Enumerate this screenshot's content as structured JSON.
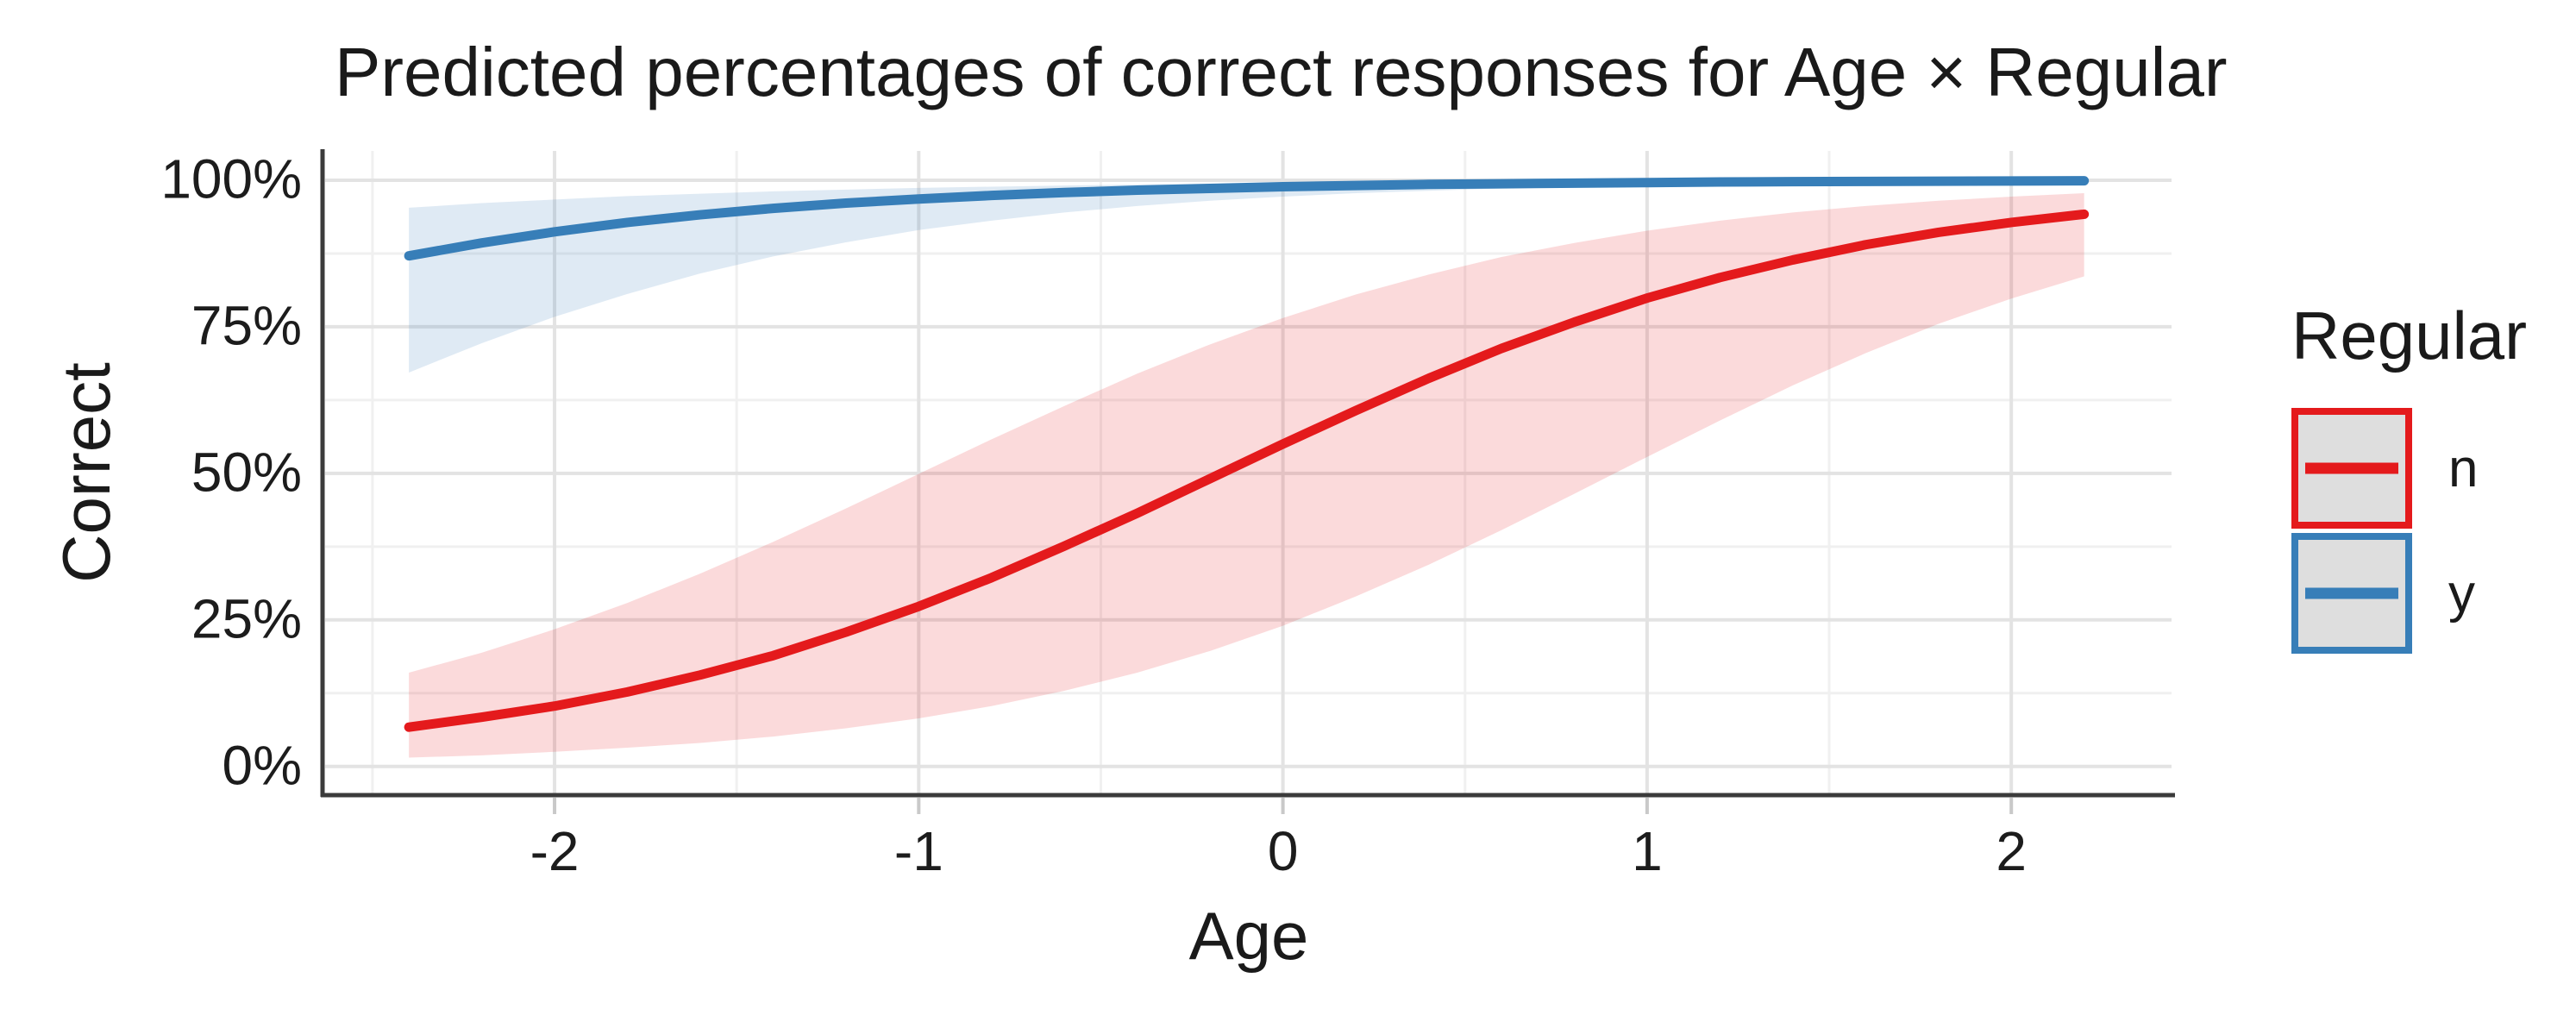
{
  "title": "Predicted percentages of correct responses for Age × Regular",
  "colors": {
    "background": "#ffffff",
    "grid_major": "#e3e3e3",
    "grid_minor": "#f0f0f0",
    "axis_line": "#3b3b3b",
    "tick_mark": "#c9c9c9",
    "text": "#1a1a1a",
    "legend_key_fill": "#dedede",
    "series_n": "#e41a1c",
    "series_y": "#377eb8",
    "ribbon_opacity": 0.16
  },
  "chart_data": {
    "type": "line",
    "title": "Predicted percentages of correct responses for Age × Regular",
    "xlabel": "Age",
    "ylabel": "Correct",
    "xlim": [
      -2.63,
      2.44
    ],
    "ylim": [
      -4.6,
      105.0
    ],
    "grid": true,
    "x_ticks": [
      -2,
      -1,
      0,
      1,
      2
    ],
    "x_tick_labels": [
      "-2",
      "-1",
      "0",
      "1",
      "2"
    ],
    "x_minor_ticks": [
      -2.5,
      -1.5,
      -0.5,
      0.5,
      1.5
    ],
    "y_ticks": [
      0,
      25,
      50,
      75,
      100
    ],
    "y_tick_labels": [
      "0%",
      "25%",
      "50%",
      "75%",
      "100%"
    ],
    "y_minor_ticks": [
      12.5,
      37.5,
      62.5,
      87.5
    ],
    "legend": {
      "title": "Regular",
      "position": "right",
      "entries": [
        {
          "label": "n",
          "color": "#e41a1c"
        },
        {
          "label": "y",
          "color": "#377eb8"
        }
      ]
    },
    "x": [
      -2.4,
      -2.2,
      -2.0,
      -1.8,
      -1.6,
      -1.4,
      -1.2,
      -1.0,
      -0.8,
      -0.6,
      -0.4,
      -0.2,
      0.0,
      0.2,
      0.4,
      0.6,
      0.8,
      1.0,
      1.2,
      1.4,
      1.6,
      1.8,
      2.0,
      2.2
    ],
    "series": [
      {
        "name": "n",
        "color": "#e41a1c",
        "values": [
          6.7,
          8.4,
          10.3,
          12.7,
          15.6,
          18.9,
          22.9,
          27.3,
          32.2,
          37.6,
          43.2,
          49.1,
          55.0,
          60.7,
          66.2,
          71.3,
          75.8,
          79.9,
          83.4,
          86.4,
          89.0,
          91.1,
          92.8,
          94.2
        ],
        "lower": [
          1.5,
          1.9,
          2.5,
          3.2,
          4.0,
          5.1,
          6.5,
          8.2,
          10.3,
          12.9,
          16.0,
          19.7,
          24.0,
          29.0,
          34.4,
          40.3,
          46.5,
          52.8,
          59.0,
          65.0,
          70.5,
          75.5,
          79.8,
          83.6
        ],
        "upper": [
          16.0,
          19.4,
          23.4,
          27.9,
          32.9,
          38.3,
          44.0,
          49.9,
          55.8,
          61.5,
          67.0,
          72.0,
          76.5,
          80.5,
          83.9,
          86.9,
          89.3,
          91.4,
          93.1,
          94.5,
          95.6,
          96.5,
          97.2,
          97.8
        ]
      },
      {
        "name": "y",
        "color": "#377eb8",
        "values": [
          87.1,
          89.3,
          91.2,
          92.8,
          94.1,
          95.2,
          96.1,
          96.8,
          97.4,
          97.9,
          98.3,
          98.6,
          98.9,
          99.1,
          99.3,
          99.4,
          99.5,
          99.6,
          99.7,
          99.76,
          99.8,
          99.84,
          99.87,
          99.9
        ],
        "lower": [
          67.2,
          72.2,
          76.7,
          80.6,
          84.1,
          87.0,
          89.4,
          91.5,
          93.1,
          94.5,
          95.6,
          96.5,
          97.2,
          97.8,
          98.2,
          98.6,
          98.9,
          99.1,
          99.3,
          99.45,
          99.57,
          99.66,
          99.73,
          99.79
        ],
        "upper": [
          95.3,
          96.1,
          96.7,
          97.3,
          97.7,
          98.1,
          98.4,
          98.7,
          98.9,
          99.1,
          99.27,
          99.4,
          99.5,
          99.58,
          99.66,
          99.71,
          99.76,
          99.81,
          99.84,
          99.87,
          99.89,
          99.91,
          99.92,
          99.94
        ]
      }
    ]
  }
}
